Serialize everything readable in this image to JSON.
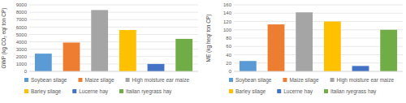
{
  "chart_data": [
    {
      "type": "bar",
      "y_label": "GWP (kg CO₂ eq/ ton CP)",
      "categories": [
        "Soybean silage",
        "Maize silage",
        "High moisture ear maize",
        "Barley silage",
        "Lucerne hay",
        "Italian ryegrass hay"
      ],
      "values": [
        2400,
        3900,
        8300,
        5600,
        1000,
        4400
      ],
      "colors": [
        "#5b9bd5",
        "#ed7d31",
        "#a5a5a5",
        "#ffc000",
        "#4472c4",
        "#70ad47"
      ],
      "ylim": [
        0,
        9000
      ],
      "yticks": [
        0,
        1000,
        2000,
        3000,
        4000,
        5000,
        6000,
        7000,
        8000,
        9000
      ],
      "grid": true,
      "tick_labels": "y",
      "legend": "bottom"
    },
    {
      "type": "bar",
      "y_label": "ME (kg heq/ ton CP)",
      "categories": [
        "Soybean silage",
        "Maize silage",
        "High moisture ear maize",
        "Barley silage",
        "Lucerne hay",
        "Italian ryegrass hay"
      ],
      "values": [
        25,
        113,
        142,
        120,
        13,
        100
      ],
      "colors": [
        "#5b9bd5",
        "#ed7d31",
        "#a5a5a5",
        "#ffc000",
        "#4472c4",
        "#70ad47"
      ],
      "ylim": [
        0,
        160
      ],
      "yticks": [
        0,
        20,
        40,
        60,
        80,
        100,
        120,
        140,
        160
      ],
      "grid": true,
      "tick_labels": "y",
      "legend": "bottom"
    }
  ]
}
